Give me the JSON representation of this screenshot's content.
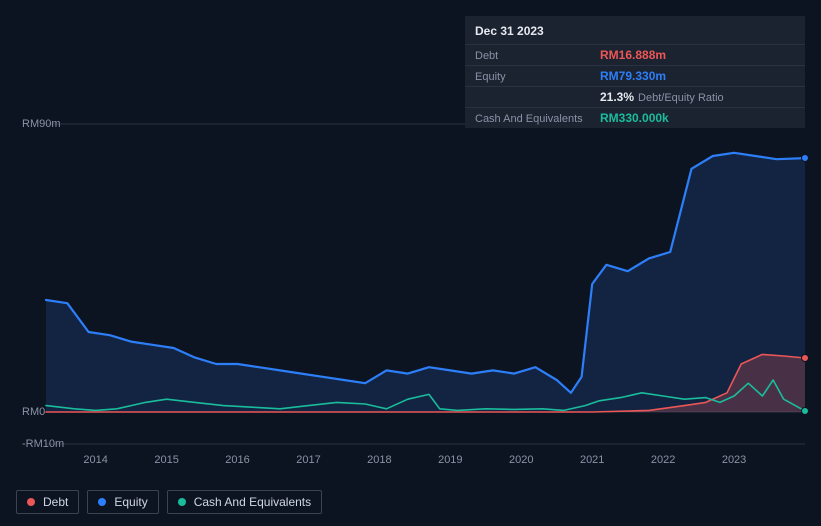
{
  "background_color": "#0d1421",
  "info_box": {
    "bg": "#1b2230",
    "date": "Dec 31 2023",
    "rows": [
      {
        "label": "Debt",
        "value": "RM16.888m",
        "cls": "debt"
      },
      {
        "label": "Equity",
        "value": "RM79.330m",
        "cls": "equity"
      },
      {
        "label": "",
        "ratio_pct": "21.3%",
        "ratio_lbl": "Debt/Equity Ratio"
      },
      {
        "label": "Cash And Equivalents",
        "value": "RM330.000k",
        "cls": "cash"
      }
    ]
  },
  "chart": {
    "type": "area",
    "y_axis": {
      "min": -10,
      "max": 90,
      "ticks": [
        {
          "v": 90,
          "label": "RM90m"
        },
        {
          "v": 0,
          "label": "RM0"
        },
        {
          "v": -10,
          "label": "-RM10m"
        }
      ],
      "grid_values": [
        90,
        0,
        -10
      ],
      "grid_color": "#2a3242"
    },
    "x_axis": {
      "min": 2013.3,
      "max": 2024.0,
      "year_ticks": [
        2014,
        2015,
        2016,
        2017,
        2018,
        2019,
        2020,
        2021,
        2022,
        2023
      ]
    },
    "series": [
      {
        "name": "Equity",
        "color": "#2d7ff9",
        "fill": "rgba(45,127,249,0.15)",
        "stroke_width": 2.2,
        "points": [
          [
            2013.3,
            35
          ],
          [
            2013.6,
            34
          ],
          [
            2013.9,
            25
          ],
          [
            2014.2,
            24
          ],
          [
            2014.5,
            22
          ],
          [
            2014.8,
            21
          ],
          [
            2015.1,
            20
          ],
          [
            2015.4,
            17
          ],
          [
            2015.7,
            15
          ],
          [
            2016.0,
            15
          ],
          [
            2016.3,
            14
          ],
          [
            2016.6,
            13
          ],
          [
            2016.9,
            12
          ],
          [
            2017.2,
            11
          ],
          [
            2017.5,
            10
          ],
          [
            2017.8,
            9
          ],
          [
            2018.1,
            13
          ],
          [
            2018.4,
            12
          ],
          [
            2018.7,
            14
          ],
          [
            2019.0,
            13
          ],
          [
            2019.3,
            12
          ],
          [
            2019.6,
            13
          ],
          [
            2019.9,
            12
          ],
          [
            2020.2,
            14
          ],
          [
            2020.5,
            10
          ],
          [
            2020.7,
            6
          ],
          [
            2020.85,
            11
          ],
          [
            2021.0,
            40
          ],
          [
            2021.2,
            46
          ],
          [
            2021.5,
            44
          ],
          [
            2021.8,
            48
          ],
          [
            2022.1,
            50
          ],
          [
            2022.4,
            76
          ],
          [
            2022.7,
            80
          ],
          [
            2023.0,
            81
          ],
          [
            2023.3,
            80
          ],
          [
            2023.6,
            79
          ],
          [
            2024.0,
            79.33
          ]
        ]
      },
      {
        "name": "Debt",
        "color": "#eb5757",
        "fill": "rgba(235,87,87,0.25)",
        "stroke_width": 1.6,
        "points": [
          [
            2013.3,
            0.0
          ],
          [
            2016.0,
            0.0
          ],
          [
            2018.0,
            0.0
          ],
          [
            2020.0,
            0.0
          ],
          [
            2021.0,
            0.0
          ],
          [
            2021.8,
            0.5
          ],
          [
            2022.3,
            2.0
          ],
          [
            2022.6,
            3.0
          ],
          [
            2022.9,
            6.0
          ],
          [
            2023.1,
            15.0
          ],
          [
            2023.4,
            18.0
          ],
          [
            2023.7,
            17.5
          ],
          [
            2024.0,
            16.888
          ]
        ]
      },
      {
        "name": "Cash And Equivalents",
        "color": "#1abc9c",
        "fill": "none",
        "stroke_width": 1.6,
        "points": [
          [
            2013.3,
            2.0
          ],
          [
            2013.7,
            1.0
          ],
          [
            2014.0,
            0.5
          ],
          [
            2014.3,
            1.0
          ],
          [
            2014.7,
            3.0
          ],
          [
            2015.0,
            4.0
          ],
          [
            2015.4,
            3.0
          ],
          [
            2015.8,
            2.0
          ],
          [
            2016.2,
            1.5
          ],
          [
            2016.6,
            1.0
          ],
          [
            2017.0,
            2.0
          ],
          [
            2017.4,
            3.0
          ],
          [
            2017.8,
            2.5
          ],
          [
            2018.1,
            1.0
          ],
          [
            2018.4,
            4.0
          ],
          [
            2018.7,
            5.5
          ],
          [
            2018.85,
            1.0
          ],
          [
            2019.1,
            0.5
          ],
          [
            2019.5,
            1.0
          ],
          [
            2019.9,
            0.8
          ],
          [
            2020.3,
            1.0
          ],
          [
            2020.6,
            0.5
          ],
          [
            2020.9,
            2.0
          ],
          [
            2021.1,
            3.5
          ],
          [
            2021.4,
            4.5
          ],
          [
            2021.7,
            6.0
          ],
          [
            2022.0,
            5.0
          ],
          [
            2022.3,
            4.0
          ],
          [
            2022.6,
            4.5
          ],
          [
            2022.8,
            3.0
          ],
          [
            2023.0,
            5.0
          ],
          [
            2023.2,
            9.0
          ],
          [
            2023.4,
            5.0
          ],
          [
            2023.55,
            10.0
          ],
          [
            2023.7,
            4.0
          ],
          [
            2024.0,
            0.33
          ]
        ]
      }
    ]
  },
  "legend": {
    "items": [
      {
        "label": "Debt",
        "color": "#eb5757"
      },
      {
        "label": "Equity",
        "color": "#2d7ff9"
      },
      {
        "label": "Cash And Equivalents",
        "color": "#1abc9c"
      }
    ],
    "border_color": "#3a4254"
  },
  "typography": {
    "axis_fontsize": 11,
    "legend_fontsize": 12,
    "info_fontsize": 12
  }
}
